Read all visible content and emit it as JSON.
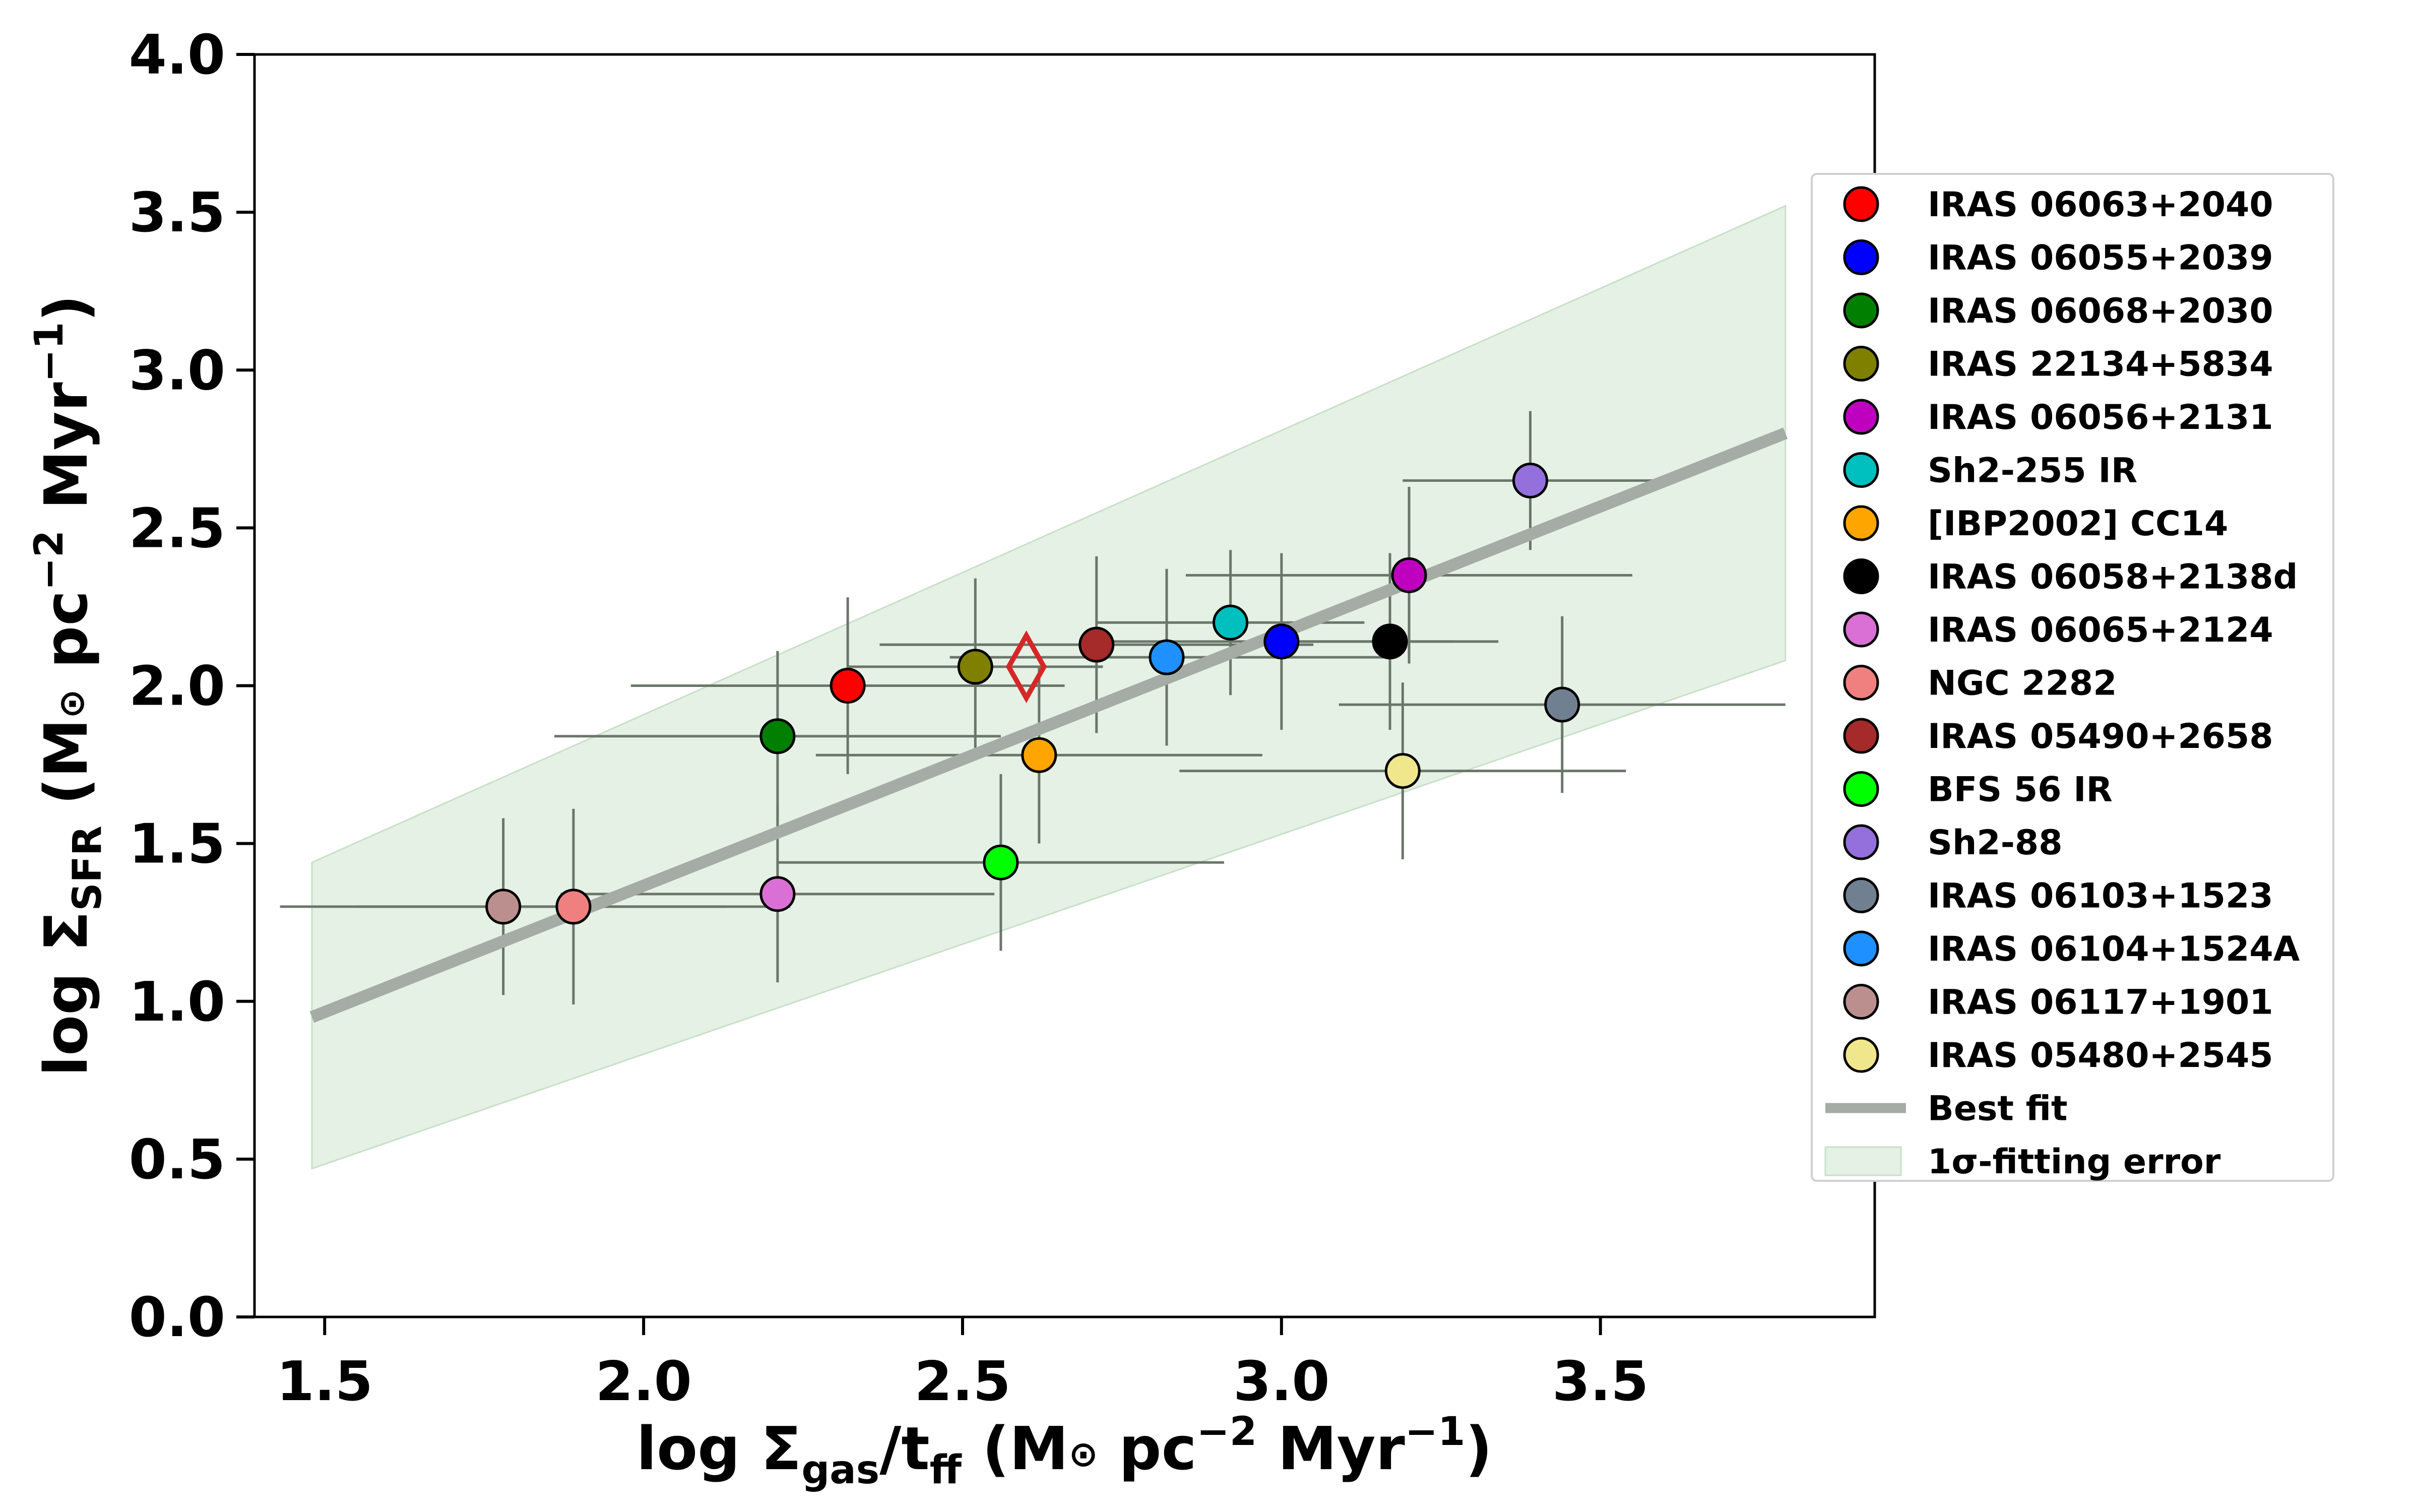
{
  "chart_data": {
    "type": "scatter",
    "xlabel": {
      "main": "log Σ",
      "sub": "gas",
      "mid": "/t",
      "sub2": "ff",
      "units_a": " (M",
      "sun": "⊙",
      "units_b": " pc",
      "exp1": "−2",
      "units_c": " Myr",
      "exp2": "−1",
      "close": ")"
    },
    "ylabel": {
      "main": "log Σ",
      "sub": "SFR",
      "units_a": " (M",
      "sun": "⊙",
      "units_b": " pc",
      "exp1": "−2",
      "units_c": " Myr",
      "exp2": "−1",
      "close": ")"
    },
    "xlim": [
      1.39,
      3.93
    ],
    "ylim": [
      0.0,
      4.0
    ],
    "xticks": [
      1.5,
      2.0,
      2.5,
      3.0,
      3.5
    ],
    "xtick_labels": [
      "1.5",
      "2.0",
      "2.5",
      "3.0",
      "3.5"
    ],
    "yticks": [
      0.0,
      0.5,
      1.0,
      1.5,
      2.0,
      2.5,
      3.0,
      3.5,
      4.0
    ],
    "ytick_labels": [
      "0.0",
      "0.5",
      "1.0",
      "1.5",
      "2.0",
      "2.5",
      "3.0",
      "3.5",
      "4.0"
    ],
    "best_fit": {
      "label": "Best fit",
      "x": [
        1.48,
        3.79
      ],
      "y": [
        0.95,
        2.8
      ],
      "color": "#a5aba5"
    },
    "error_band": {
      "label": "1σ-fitting error",
      "x": [
        1.48,
        3.79
      ],
      "upper": [
        1.44,
        3.52
      ],
      "lower": [
        0.47,
        2.08
      ],
      "color": "#e5f1e5"
    },
    "target": {
      "name": "diamond-marker",
      "x": 2.6,
      "y": 2.06,
      "color": "#d62728"
    },
    "series": [
      {
        "name": "IRAS 06063+2040",
        "x": 2.32,
        "y": 2.0,
        "xerr": 0.34,
        "yerr": 0.28,
        "color": "#ff0000"
      },
      {
        "name": "IRAS 06055+2039",
        "x": 3.0,
        "y": 2.14,
        "xerr": 0.27,
        "yerr": 0.28,
        "color": "#0000ff"
      },
      {
        "name": "IRAS 06068+2030",
        "x": 2.21,
        "y": 1.84,
        "xerr": 0.35,
        "yerr": 0.27,
        "color": "#007f00"
      },
      {
        "name": "IRAS 22134+5834",
        "x": 2.52,
        "y": 2.06,
        "xerr": 0.2,
        "yerr": 0.28,
        "color": "#7f7f00"
      },
      {
        "name": "IRAS 06056+2131",
        "x": 3.2,
        "y": 2.35,
        "xerr": 0.35,
        "yerr": 0.28,
        "color": "#bf00bf"
      },
      {
        "name": "Sh2-255 IR",
        "x": 2.92,
        "y": 2.2,
        "xerr": 0.21,
        "yerr": 0.23,
        "color": "#00bfbf"
      },
      {
        "name": "[IBP2002] CC14",
        "x": 2.62,
        "y": 1.78,
        "xerr": 0.35,
        "yerr": 0.28,
        "color": "#ffa500"
      },
      {
        "name": "IRAS 06058+2138d",
        "x": 3.17,
        "y": 2.14,
        "xerr": 0.17,
        "yerr": 0.28,
        "color": "#000000"
      },
      {
        "name": "IRAS 06065+2124",
        "x": 2.21,
        "y": 1.34,
        "xerr": 0.34,
        "yerr": 0.28,
        "color": "#da70d6"
      },
      {
        "name": "NGC 2282",
        "x": 1.89,
        "y": 1.3,
        "xerr": 0.34,
        "yerr": 0.31,
        "color": "#f08080"
      },
      {
        "name": "IRAS 05490+2658",
        "x": 2.71,
        "y": 2.13,
        "xerr": 0.34,
        "yerr": 0.28,
        "color": "#a52a2a"
      },
      {
        "name": "BFS 56 IR",
        "x": 2.56,
        "y": 1.44,
        "xerr": 0.35,
        "yerr": 0.28,
        "color": "#00ff00"
      },
      {
        "name": "Sh2-88",
        "x": 3.39,
        "y": 2.65,
        "xerr": 0.2,
        "yerr": 0.22,
        "color": "#9370db"
      },
      {
        "name": "IRAS 06103+1523",
        "x": 3.44,
        "y": 1.94,
        "xerr": 0.35,
        "yerr": 0.28,
        "color": "#708090"
      },
      {
        "name": "IRAS 06104+1524A",
        "x": 2.82,
        "y": 2.09,
        "xerr": 0.34,
        "yerr": 0.28,
        "color": "#1e90ff"
      },
      {
        "name": "IRAS 06117+1901",
        "x": 1.78,
        "y": 1.3,
        "xerr": 0.35,
        "yerr": 0.28,
        "color": "#bc8f8f"
      },
      {
        "name": "IRAS 05480+2545",
        "x": 3.19,
        "y": 1.73,
        "xerr": 0.35,
        "yerr": 0.28,
        "color": "#f0e68c"
      }
    ]
  }
}
